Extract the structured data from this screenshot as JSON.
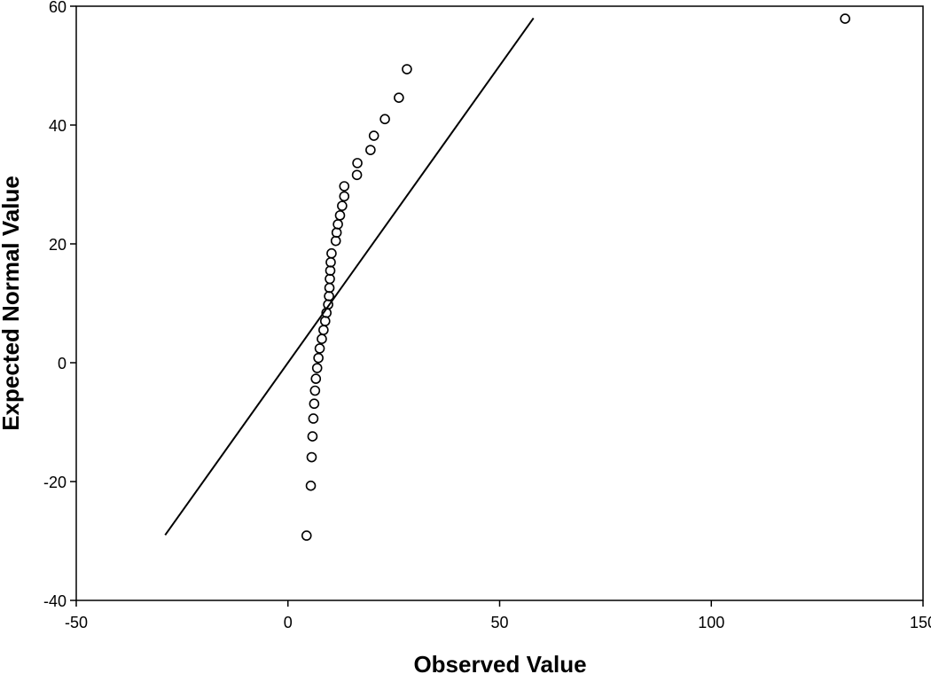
{
  "chart_data": {
    "type": "scatter",
    "title": "",
    "xlabel": "Observed Value",
    "ylabel": "Expected Normal Value",
    "xlim": [
      -50,
      150
    ],
    "ylim": [
      -40,
      60
    ],
    "xticks": [
      "-50",
      "0",
      "50",
      "100",
      "150"
    ],
    "yticks": [
      "-40",
      "-20",
      "0",
      "20",
      "40",
      "60"
    ],
    "grid": false,
    "legend": "none",
    "colors": {
      "points": "#000000",
      "line": "#000000",
      "frame": "#000000",
      "background": "#ffffff"
    },
    "marker": "open-circle",
    "reference_line": {
      "x": [
        -29,
        58
      ],
      "y": [
        -29,
        58
      ]
    },
    "points": [
      {
        "x": 4.4,
        "y": -29.1
      },
      {
        "x": 5.4,
        "y": -20.7
      },
      {
        "x": 5.6,
        "y": -15.9
      },
      {
        "x": 5.8,
        "y": -12.4
      },
      {
        "x": 6.0,
        "y": -9.4
      },
      {
        "x": 6.2,
        "y": -6.9
      },
      {
        "x": 6.4,
        "y": -4.7
      },
      {
        "x": 6.6,
        "y": -2.7
      },
      {
        "x": 6.9,
        "y": -0.9
      },
      {
        "x": 7.2,
        "y": 0.8
      },
      {
        "x": 7.5,
        "y": 2.4
      },
      {
        "x": 8.0,
        "y": 4.0
      },
      {
        "x": 8.4,
        "y": 5.5
      },
      {
        "x": 8.8,
        "y": 7.0
      },
      {
        "x": 9.1,
        "y": 8.4
      },
      {
        "x": 9.5,
        "y": 9.8
      },
      {
        "x": 9.7,
        "y": 11.2
      },
      {
        "x": 9.8,
        "y": 12.6
      },
      {
        "x": 9.9,
        "y": 14.1
      },
      {
        "x": 10.0,
        "y": 15.5
      },
      {
        "x": 10.1,
        "y": 16.9
      },
      {
        "x": 10.3,
        "y": 18.4
      },
      {
        "x": 11.3,
        "y": 20.5
      },
      {
        "x": 11.5,
        "y": 21.9
      },
      {
        "x": 11.8,
        "y": 23.3
      },
      {
        "x": 12.3,
        "y": 24.8
      },
      {
        "x": 12.8,
        "y": 26.4
      },
      {
        "x": 13.3,
        "y": 28.0
      },
      {
        "x": 13.3,
        "y": 29.7
      },
      {
        "x": 16.3,
        "y": 31.6
      },
      {
        "x": 16.4,
        "y": 33.6
      },
      {
        "x": 19.5,
        "y": 35.8
      },
      {
        "x": 20.3,
        "y": 38.2
      },
      {
        "x": 22.9,
        "y": 41.0
      },
      {
        "x": 26.2,
        "y": 44.6
      },
      {
        "x": 28.1,
        "y": 49.4
      },
      {
        "x": 131.6,
        "y": 57.9
      }
    ]
  }
}
